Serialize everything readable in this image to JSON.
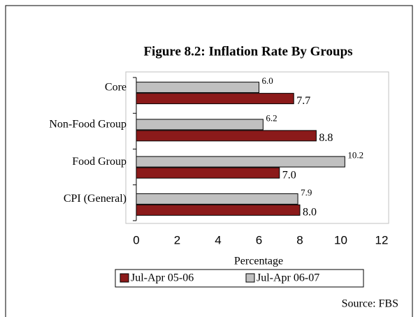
{
  "chart_data": {
    "type": "barh",
    "title": "Figure 8.2: Inflation Rate By Groups",
    "categories": [
      "Core",
      "Non-Food Group",
      "Food Group",
      "CPI (General)"
    ],
    "series": [
      {
        "name": "Jul-Apr 05-06",
        "color": "#8b1a1a",
        "values": [
          7.7,
          8.8,
          7.0,
          8.0
        ],
        "value_labels": [
          "7.7",
          "8.8",
          "7.0",
          "8.0"
        ]
      },
      {
        "name": "Jul-Apr 06-07",
        "color": "#c0c0c0",
        "values": [
          6.0,
          6.2,
          10.2,
          7.9
        ],
        "value_labels": [
          "6.0",
          "6.2",
          "10.2",
          "7.9"
        ]
      }
    ],
    "xlabel": "Percentage",
    "xlim": [
      0,
      12
    ],
    "xticks": [
      0,
      2,
      4,
      6,
      8,
      10,
      12
    ],
    "legend": "bottom",
    "source": "Source: FBS"
  }
}
